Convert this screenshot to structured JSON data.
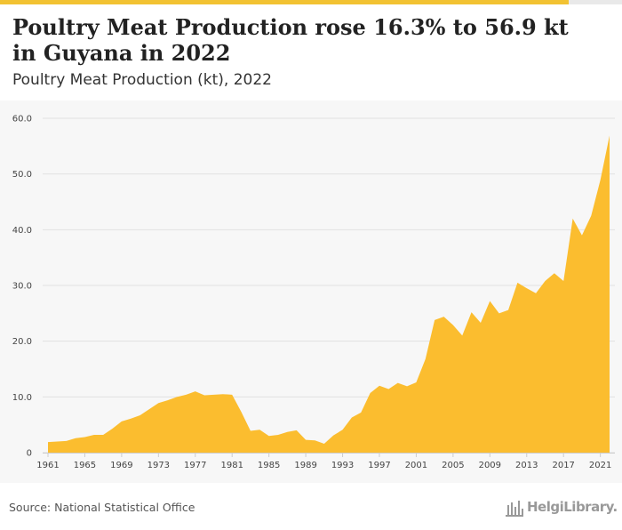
{
  "header": {
    "title": "Poultry Meat Production rose 16.3% to 56.9 kt in Guyana in 2022",
    "subtitle": "Poultry Meat Production (kt), 2022"
  },
  "footer": {
    "source": "Source: National Statistical Office",
    "logo_text": "HelgiLibrary."
  },
  "colors": {
    "accent": "#fbbd2f",
    "topbar": [
      "#f2c232",
      "#e9e9e9"
    ],
    "logo": "#999999"
  },
  "chart_data": {
    "type": "area",
    "title": "Poultry Meat Production (kt), 2022",
    "xlabel": "",
    "ylabel": "",
    "ylim": [
      0,
      60
    ],
    "yticks": [
      "0",
      "10.0",
      "20.0",
      "30.0",
      "40.0",
      "50.0",
      "60.0"
    ],
    "xticks": [
      "1961",
      "1965",
      "1969",
      "1973",
      "1977",
      "1981",
      "1985",
      "1989",
      "1993",
      "1997",
      "2001",
      "2005",
      "2009",
      "2013",
      "2017",
      "2021"
    ],
    "grid": true,
    "legend": "none",
    "color": "#fbbd2f",
    "x": [
      1961,
      1962,
      1963,
      1964,
      1965,
      1966,
      1967,
      1968,
      1969,
      1970,
      1971,
      1972,
      1973,
      1974,
      1975,
      1976,
      1977,
      1978,
      1979,
      1980,
      1981,
      1982,
      1983,
      1984,
      1985,
      1986,
      1987,
      1988,
      1989,
      1990,
      1991,
      1992,
      1993,
      1994,
      1995,
      1996,
      1997,
      1998,
      1999,
      2000,
      2001,
      2002,
      2003,
      2004,
      2005,
      2006,
      2007,
      2008,
      2009,
      2010,
      2011,
      2012,
      2013,
      2014,
      2015,
      2016,
      2017,
      2018,
      2019,
      2020,
      2021,
      2022
    ],
    "values": [
      1.9,
      2.0,
      2.1,
      2.6,
      2.8,
      3.2,
      3.2,
      4.3,
      5.6,
      6.1,
      6.7,
      7.8,
      8.9,
      9.4,
      10.0,
      10.4,
      11.0,
      10.3,
      10.4,
      10.5,
      10.4,
      7.3,
      3.9,
      4.1,
      3.0,
      3.2,
      3.7,
      4.0,
      2.3,
      2.2,
      1.6,
      3.1,
      4.1,
      6.3,
      7.2,
      10.7,
      12.0,
      11.4,
      12.5,
      11.9,
      12.6,
      16.8,
      23.8,
      24.4,
      22.9,
      21.0,
      25.2,
      23.3,
      27.2,
      25.0,
      25.6,
      30.5,
      29.5,
      28.6,
      30.8,
      32.2,
      30.8,
      42.0,
      39.0,
      42.5,
      48.9,
      56.9
    ]
  }
}
